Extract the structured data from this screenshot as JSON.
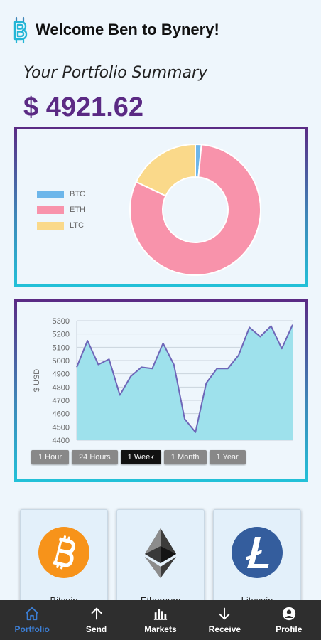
{
  "header": {
    "title": "Welcome Ben to Bynery!"
  },
  "summary": {
    "label": "Your Portfolio Summary",
    "total": "$ 4921.62"
  },
  "colors": {
    "accent": "#5b2a84",
    "btc": "#6db6ea",
    "eth": "#f893ab",
    "ltc": "#fad98a",
    "line_fill": "#9ee1ec",
    "line_stroke": "#6e66b8",
    "nav_active": "#3c7fd6"
  },
  "chart_data": [
    {
      "type": "pie",
      "variant": "donut",
      "labels": [
        "BTC",
        "ETH",
        "LTC"
      ],
      "values": [
        1.5,
        80.5,
        18
      ],
      "legend": "left"
    },
    {
      "type": "area",
      "ylabel": "$ USD",
      "ylim": [
        4400,
        5300
      ],
      "yticks": [
        4400,
        4500,
        4600,
        4700,
        4800,
        4900,
        5000,
        5100,
        5200,
        5300
      ],
      "grid": true,
      "values": [
        4950,
        5150,
        4970,
        5010,
        4740,
        4880,
        4950,
        4940,
        5130,
        4970,
        4560,
        4460,
        4830,
        4940,
        4940,
        5040,
        5250,
        5180,
        5260,
        5090,
        5270
      ]
    }
  ],
  "range_buttons": [
    {
      "label": "1 Hour",
      "active": false
    },
    {
      "label": "24 Hours",
      "active": false
    },
    {
      "label": "1 Week",
      "active": true
    },
    {
      "label": "1 Month",
      "active": false
    },
    {
      "label": "1 Year",
      "active": false
    }
  ],
  "coins": [
    {
      "name": "Bitcoin",
      "icon": "bitcoin-icon"
    },
    {
      "name": "Ethereum",
      "icon": "ethereum-icon"
    },
    {
      "name": "Litecoin",
      "icon": "litecoin-icon"
    }
  ],
  "nav": [
    {
      "label": "Portfolio",
      "icon": "home-icon",
      "active": true
    },
    {
      "label": "Send",
      "icon": "arrow-up-icon",
      "active": false
    },
    {
      "label": "Markets",
      "icon": "bar-chart-icon",
      "active": false
    },
    {
      "label": "Receive",
      "icon": "arrow-down-icon",
      "active": false
    },
    {
      "label": "Profile",
      "icon": "user-icon",
      "active": false
    }
  ]
}
